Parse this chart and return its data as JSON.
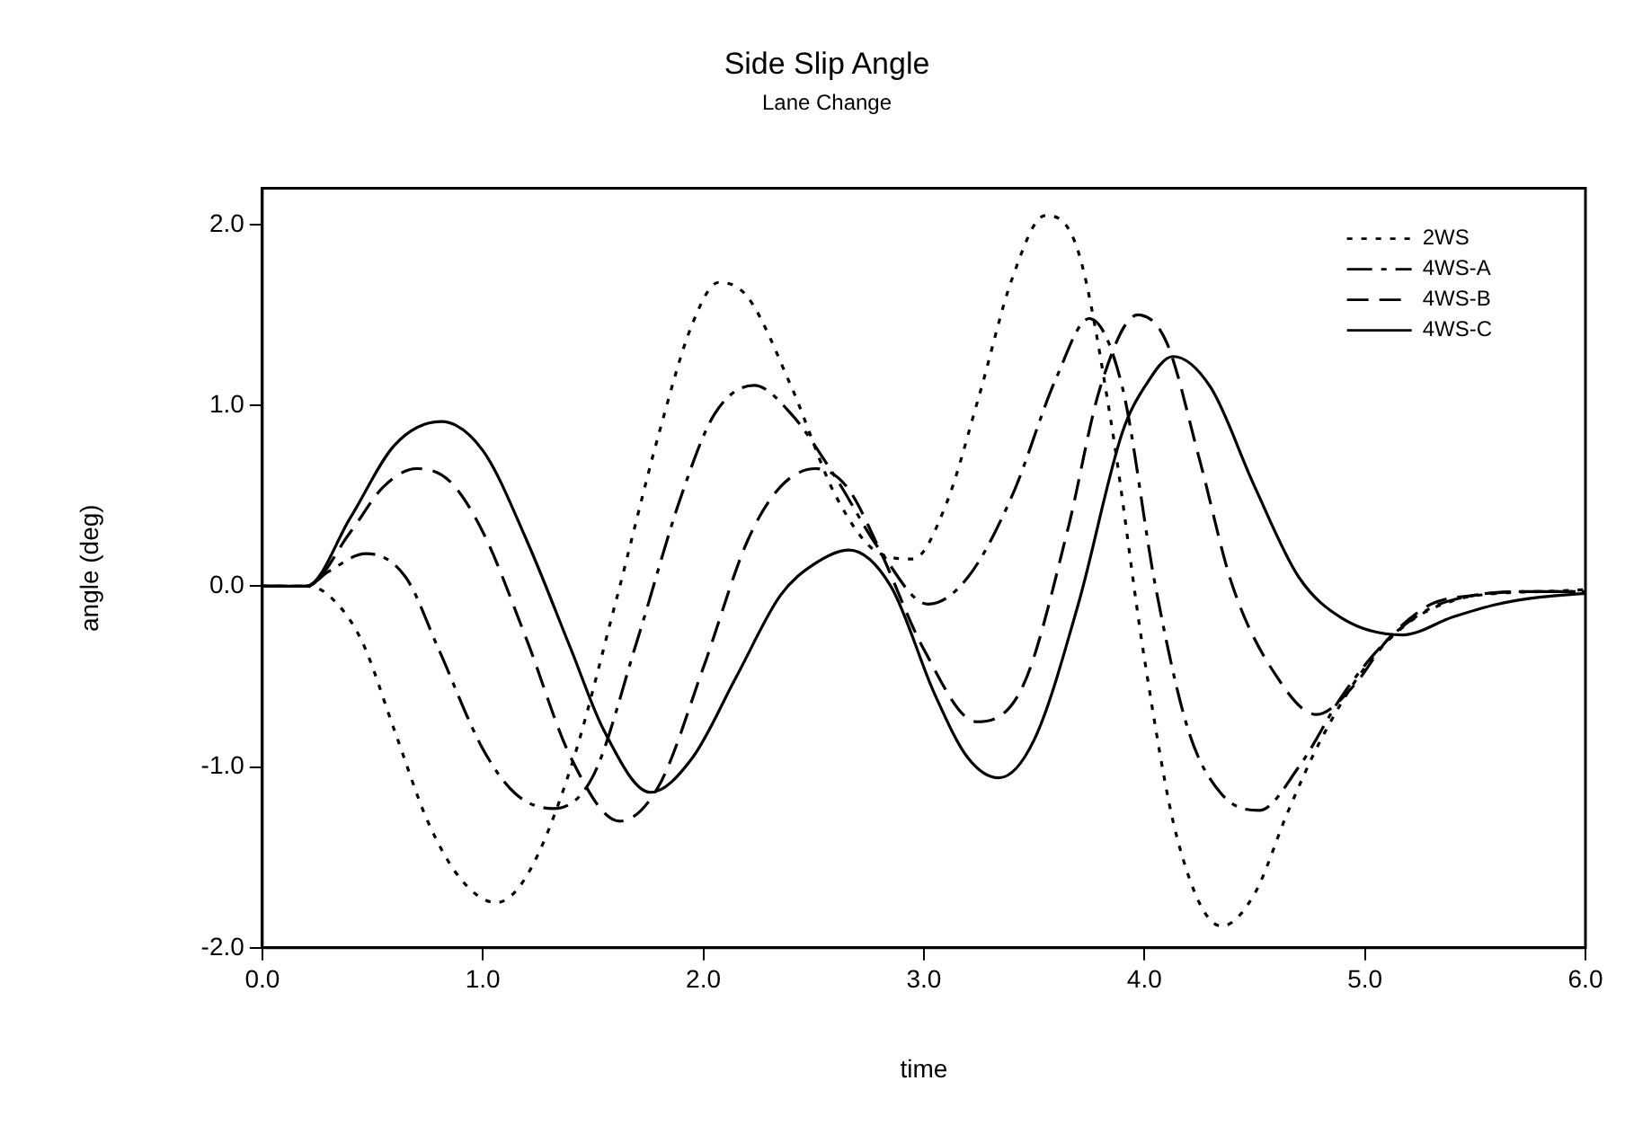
{
  "chart_data": {
    "type": "line",
    "title": "Side Slip Angle",
    "subtitle": "Lane Change",
    "xlabel": "time",
    "ylabel": "angle (deg)",
    "xlim": [
      0,
      6
    ],
    "ylim": [
      -2,
      2.2
    ],
    "xticks": [
      {
        "value": 0,
        "label": "0.0"
      },
      {
        "value": 1,
        "label": "1.0"
      },
      {
        "value": 2,
        "label": "2.0"
      },
      {
        "value": 3,
        "label": "3.0"
      },
      {
        "value": 4,
        "label": "4.0"
      },
      {
        "value": 5,
        "label": "5.0"
      },
      {
        "value": 6,
        "label": "6.0"
      }
    ],
    "yticks": [
      {
        "value": -2,
        "label": "-2.0"
      },
      {
        "value": -1,
        "label": "-1.0"
      },
      {
        "value": 0,
        "label": "0.0"
      },
      {
        "value": 1,
        "label": "1.0"
      },
      {
        "value": 2,
        "label": "2.0"
      }
    ],
    "grid": false,
    "legend": "top right",
    "marker": "none",
    "series": [
      {
        "name": "2WS",
        "color": "#000000",
        "line_style": "dotted",
        "x": [
          0,
          0.2,
          0.3,
          0.45,
          0.6,
          0.75,
          0.9,
          1.06,
          1.2,
          1.4,
          1.6,
          1.8,
          1.95,
          2.07,
          2.2,
          2.4,
          2.6,
          2.8,
          2.95,
          3.1,
          3.25,
          3.4,
          3.55,
          3.7,
          3.85,
          4.0,
          4.15,
          4.35,
          4.5,
          4.65,
          4.8,
          5.0,
          5.2,
          5.4,
          5.6,
          5.8,
          6.0
        ],
        "values": [
          0,
          0,
          -0.05,
          -0.3,
          -0.8,
          -1.3,
          -1.62,
          -1.75,
          -1.6,
          -1.0,
          -0.1,
          0.85,
          1.45,
          1.68,
          1.6,
          1.1,
          0.5,
          0.18,
          0.15,
          0.45,
          1.05,
          1.7,
          2.05,
          1.85,
          0.9,
          -0.4,
          -1.4,
          -1.88,
          -1.7,
          -1.25,
          -0.85,
          -0.45,
          -0.2,
          -0.08,
          -0.04,
          -0.03,
          -0.02
        ]
      },
      {
        "name": "4WS-A",
        "color": "#000000",
        "line_style": "dashdot",
        "x": [
          0,
          0.2,
          0.3,
          0.47,
          0.65,
          0.8,
          1.0,
          1.15,
          1.32,
          1.5,
          1.7,
          1.9,
          2.05,
          2.23,
          2.4,
          2.6,
          2.8,
          3.02,
          3.2,
          3.4,
          3.6,
          3.75,
          3.9,
          4.05,
          4.2,
          4.35,
          4.52,
          4.7,
          4.9,
          5.1,
          5.3,
          5.5,
          5.7,
          6.0
        ],
        "values": [
          0,
          0,
          0.08,
          0.18,
          0.05,
          -0.35,
          -0.9,
          -1.15,
          -1.23,
          -1.05,
          -0.3,
          0.5,
          0.95,
          1.11,
          0.95,
          0.6,
          0.2,
          -0.1,
          0.05,
          0.5,
          1.15,
          1.48,
          1.1,
          0.0,
          -0.8,
          -1.15,
          -1.24,
          -1.0,
          -0.6,
          -0.3,
          -0.12,
          -0.05,
          -0.03,
          -0.03
        ]
      },
      {
        "name": "4WS-B",
        "color": "#000000",
        "line_style": "dashed",
        "x": [
          0,
          0.2,
          0.4,
          0.55,
          0.7,
          0.85,
          1.0,
          1.2,
          1.4,
          1.62,
          1.8,
          2.0,
          2.2,
          2.35,
          2.51,
          2.65,
          2.8,
          3.0,
          3.24,
          3.45,
          3.65,
          3.8,
          3.97,
          4.1,
          4.25,
          4.4,
          4.6,
          4.78,
          4.95,
          5.1,
          5.3,
          5.5,
          5.7,
          6.0
        ],
        "values": [
          0,
          0,
          0.3,
          0.55,
          0.65,
          0.58,
          0.3,
          -0.3,
          -0.95,
          -1.3,
          -1.1,
          -0.45,
          0.25,
          0.55,
          0.65,
          0.55,
          0.2,
          -0.35,
          -0.75,
          -0.55,
          0.3,
          1.1,
          1.5,
          1.35,
          0.7,
          0.0,
          -0.5,
          -0.71,
          -0.55,
          -0.3,
          -0.1,
          -0.05,
          -0.03,
          -0.03
        ]
      },
      {
        "name": "4WS-C",
        "color": "#000000",
        "line_style": "solid",
        "x": [
          0,
          0.2,
          0.4,
          0.6,
          0.81,
          1.0,
          1.2,
          1.4,
          1.55,
          1.76,
          1.95,
          2.15,
          2.35,
          2.5,
          2.66,
          2.85,
          3.05,
          3.2,
          3.34,
          3.5,
          3.7,
          3.9,
          4.0,
          4.13,
          4.3,
          4.5,
          4.7,
          4.9,
          5.17,
          5.4,
          5.6,
          5.8,
          6.0
        ],
        "values": [
          0,
          0,
          0.38,
          0.78,
          0.91,
          0.75,
          0.25,
          -0.35,
          -0.8,
          -1.14,
          -0.95,
          -0.5,
          -0.05,
          0.12,
          0.2,
          0.0,
          -0.6,
          -0.95,
          -1.06,
          -0.85,
          -0.1,
          0.85,
          1.1,
          1.27,
          1.1,
          0.55,
          0.05,
          -0.18,
          -0.27,
          -0.17,
          -0.1,
          -0.06,
          -0.04
        ]
      }
    ]
  }
}
